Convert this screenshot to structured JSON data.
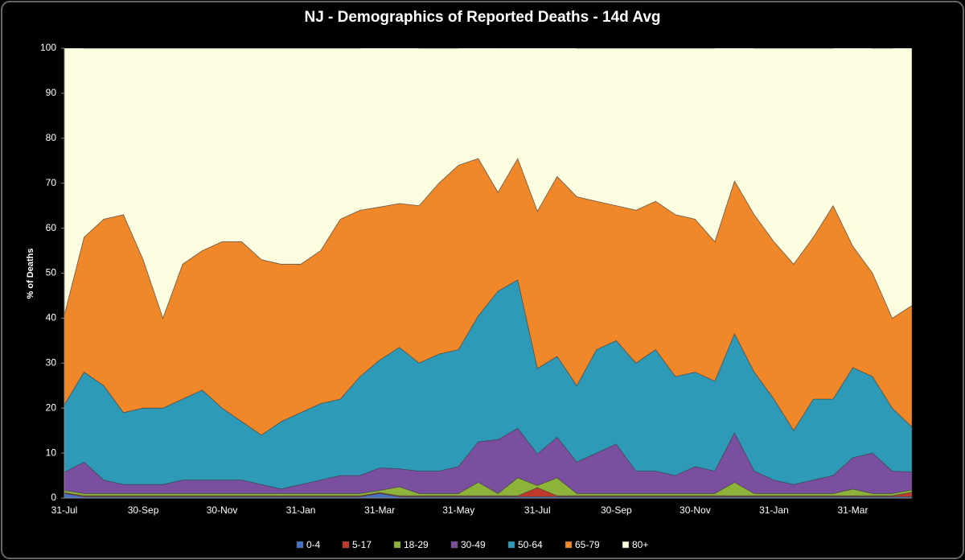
{
  "chart_data": {
    "type": "stacked_area",
    "title": "NJ - Demographics of Reported Deaths - 14d Avg",
    "y_label": "% of Deaths",
    "categories": [
      "31-Jul",
      null,
      null,
      null,
      "30-Sep",
      null,
      null,
      null,
      "30-Nov",
      null,
      null,
      null,
      "31-Jan",
      null,
      null,
      null,
      "31-Mar",
      null,
      null,
      null,
      "31-May",
      null,
      null,
      null,
      "31-Jul",
      null,
      null,
      null,
      "30-Sep",
      null,
      null,
      null,
      "30-Nov",
      null,
      null,
      null,
      "31-Jan",
      null,
      null,
      null,
      "31-Mar",
      null,
      null,
      null
    ],
    "series": [
      {
        "name": "0-4",
        "color": "#4472c4",
        "values": [
          1,
          0.3,
          0.3,
          0.3,
          0.3,
          0.3,
          0.3,
          0.3,
          0.3,
          0.3,
          0.3,
          0.3,
          0.3,
          0.3,
          0.3,
          0.3,
          1,
          0.3,
          0.3,
          0.3,
          0.3,
          0.3,
          0.3,
          0.3,
          0.3,
          0.3,
          0.3,
          0.3,
          0.3,
          0.3,
          0.3,
          0.3,
          0.3,
          0.3,
          0.3,
          0.3,
          0.3,
          0.3,
          0.3,
          0.3,
          0.3,
          0.3,
          0.3,
          0.3
        ]
      },
      {
        "name": "5-17",
        "color": "#c0392b",
        "values": [
          0.2,
          0.2,
          0.2,
          0.2,
          0.2,
          0.2,
          0.2,
          0.2,
          0.2,
          0.2,
          0.2,
          0.2,
          0.2,
          0.2,
          0.2,
          0.2,
          0.2,
          0.2,
          0.2,
          0.2,
          0.2,
          0.2,
          0.2,
          0.2,
          2,
          0.2,
          0.2,
          0.2,
          0.2,
          0.2,
          0.2,
          0.2,
          0.2,
          0.2,
          0.2,
          0.2,
          0.2,
          0.2,
          0.2,
          0.2,
          0.2,
          0.2,
          0.2,
          1
        ]
      },
      {
        "name": "18-29",
        "color": "#8db33a",
        "values": [
          0.5,
          0.5,
          0.5,
          0.5,
          0.5,
          0.5,
          0.5,
          0.5,
          0.5,
          0.5,
          0.5,
          0.5,
          0.5,
          0.5,
          0.5,
          0.5,
          0.5,
          2,
          0.5,
          0.5,
          0.5,
          3,
          0.5,
          4,
          0.5,
          4,
          0.5,
          0.5,
          0.5,
          0.5,
          0.5,
          0.5,
          0.5,
          0.5,
          3,
          0.5,
          0.5,
          0.5,
          0.5,
          0.5,
          1.5,
          0.5,
          0.5,
          0.5
        ]
      },
      {
        "name": "30-49",
        "color": "#7b4fa0",
        "values": [
          4,
          7,
          3,
          2,
          2,
          2,
          3,
          3,
          3,
          3,
          2,
          1,
          2,
          3,
          4,
          4,
          5,
          4,
          5,
          5,
          6,
          9,
          12,
          11,
          7,
          9,
          7,
          9,
          11,
          5,
          5,
          4,
          6,
          5,
          11,
          5,
          3,
          2,
          3,
          4,
          7,
          9,
          5,
          4
        ]
      },
      {
        "name": "50-64",
        "color": "#2e9ab8",
        "values": [
          15,
          20,
          21,
          16,
          17,
          17,
          18,
          20,
          16,
          13,
          11,
          15,
          16,
          17,
          17,
          22,
          24,
          27,
          24,
          26,
          26,
          28,
          33,
          33,
          19,
          18,
          17,
          23,
          23,
          24,
          27,
          22,
          21,
          20,
          22,
          22,
          18,
          12,
          18,
          17,
          20,
          17,
          14,
          10
        ]
      },
      {
        "name": "65-79",
        "color": "#f0882a",
        "values": [
          20,
          30,
          37,
          44,
          33,
          20,
          30,
          31,
          37,
          40,
          39,
          35,
          33,
          34,
          40,
          37,
          34,
          32,
          35,
          38,
          41,
          35,
          22,
          27,
          35,
          40,
          42,
          33,
          30,
          34,
          33,
          36,
          34,
          31,
          34,
          35,
          35,
          37,
          36,
          43,
          27,
          23,
          20,
          27
        ]
      },
      {
        "name": "80+",
        "color": "#fdfde0",
        "values": [
          60,
          42,
          38,
          37,
          47,
          60,
          48,
          45,
          43,
          43,
          47,
          48,
          48,
          45,
          38,
          36,
          36,
          36,
          35,
          30,
          26,
          27,
          32,
          28,
          38,
          32,
          33,
          34,
          35,
          36,
          34,
          37,
          38,
          43,
          32,
          37,
          43,
          48,
          42,
          35,
          45,
          50,
          60,
          58
        ]
      }
    ],
    "ylim": [
      0,
      100
    ],
    "yticks": [
      0,
      10,
      20,
      30,
      40,
      50,
      60,
      70,
      80,
      90,
      100
    ],
    "legend": "bottom"
  }
}
